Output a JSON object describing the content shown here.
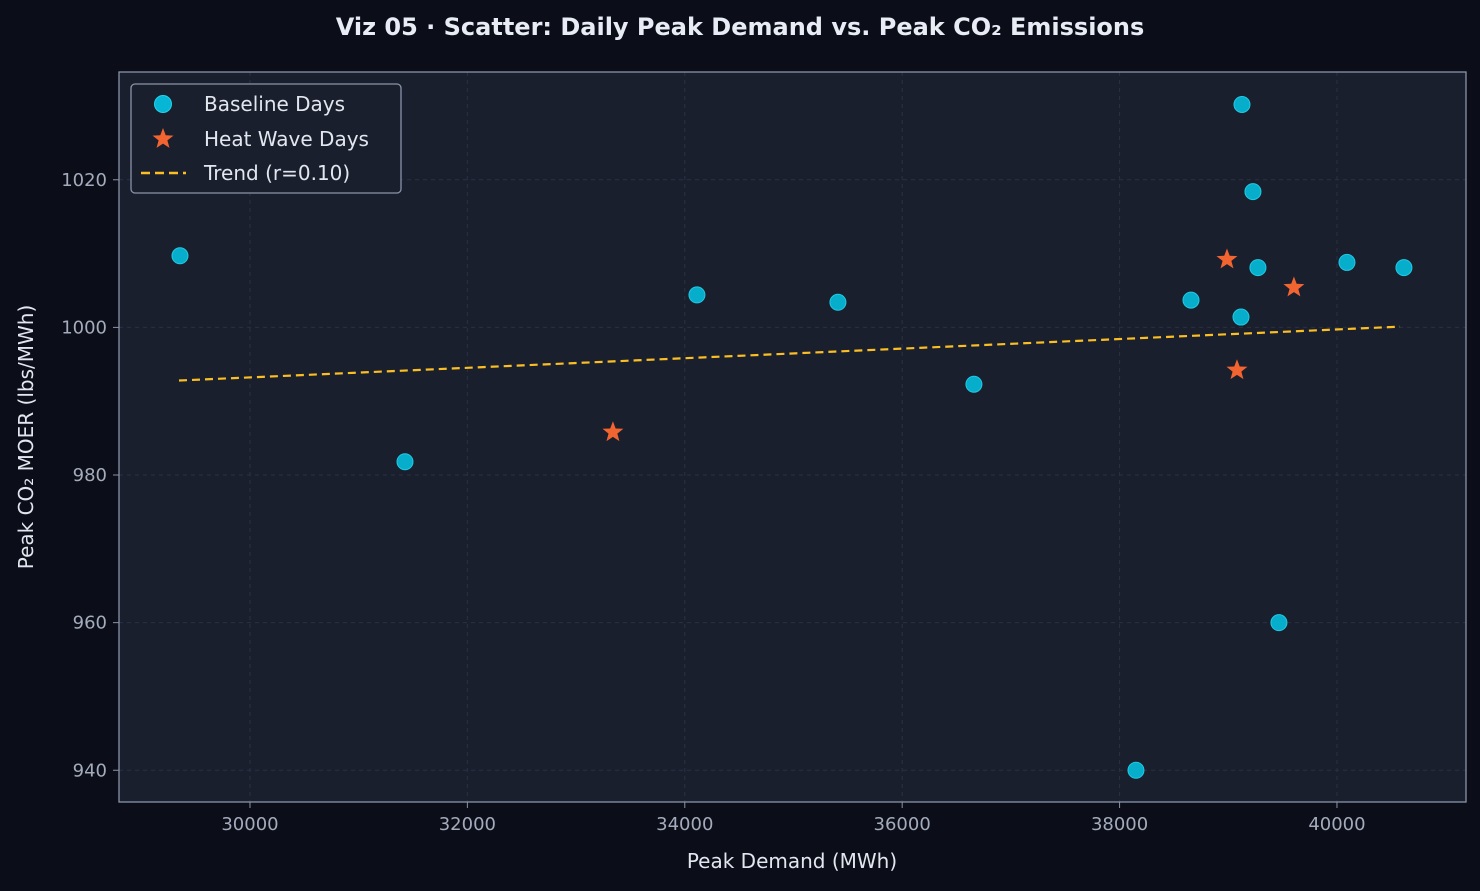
{
  "chart_data": {
    "type": "scatter",
    "title": "Viz 05 · Scatter: Daily Peak Demand vs. Peak CO₂ Emissions",
    "xlabel": "Peak Demand (MWh)",
    "ylabel": "Peak CO₂ MOER (lbs/MWh)",
    "xlim": [
      28795,
      41187
    ],
    "ylim": [
      935.7,
      1034.6
    ],
    "xticks": [
      30000,
      32000,
      34000,
      36000,
      38000,
      40000
    ],
    "yticks": [
      940,
      960,
      980,
      1000,
      1020
    ],
    "grid": true,
    "legend_position": "top-left",
    "series": [
      {
        "name": "Baseline Days",
        "marker": "circle",
        "color": "#06b6d4",
        "points": [
          [
            29356,
            1009.7
          ],
          [
            31426,
            981.8
          ],
          [
            34112,
            1004.4
          ],
          [
            35409,
            1003.4
          ],
          [
            36660,
            992.3
          ],
          [
            38151,
            940.0
          ],
          [
            38657,
            1003.7
          ],
          [
            39126,
            1030.2
          ],
          [
            39227,
            1018.4
          ],
          [
            39273,
            1008.1
          ],
          [
            39117,
            1001.4
          ],
          [
            39466,
            960.0
          ],
          [
            40092,
            1008.8
          ],
          [
            40616,
            1008.1
          ]
        ]
      },
      {
        "name": "Heat Wave Days",
        "marker": "star",
        "color": "#f26430",
        "points": [
          [
            33339,
            985.8
          ],
          [
            38988,
            1009.2
          ],
          [
            39080,
            994.2
          ],
          [
            39604,
            1005.4
          ]
        ]
      },
      {
        "name": "Trend (r=0.10)",
        "marker": "dashed-line",
        "color": "#fbbf24",
        "points": [
          [
            29347,
            992.8
          ],
          [
            40580,
            1000.1
          ]
        ]
      }
    ]
  }
}
